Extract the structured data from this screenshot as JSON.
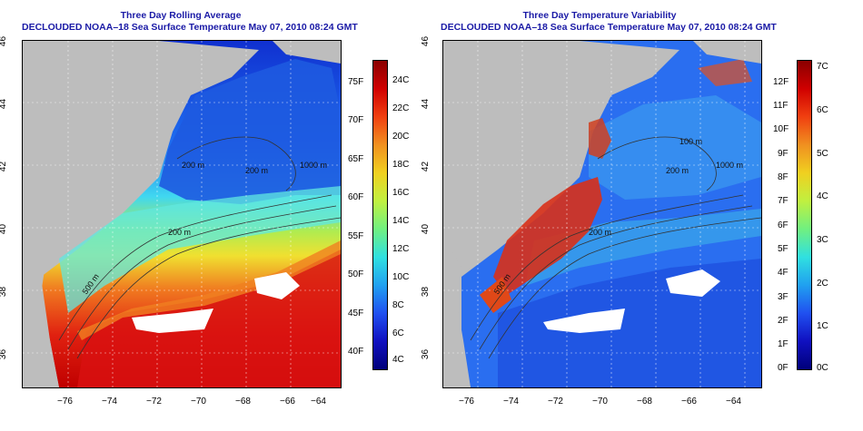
{
  "left_panel": {
    "title_line1": "Three Day Rolling Average",
    "title_line2": "DECLOUDED NOAA–18 Sea Surface Temperature May 07, 2010 08:24 GMT",
    "contour_labels": [
      "200 m",
      "500 m",
      "1000 m",
      "200 m",
      "200 m"
    ],
    "colorbar_f": [
      "75F",
      "70F",
      "65F",
      "60F",
      "55F",
      "50F",
      "45F",
      "40F"
    ],
    "colorbar_c": [
      "24C",
      "22C",
      "20C",
      "18C",
      "16C",
      "14C",
      "12C",
      "10C",
      "8C",
      "6C",
      "4C"
    ]
  },
  "right_panel": {
    "title_line1": "Three Day Temperature Variability",
    "title_line2": "DECLOUDED NOAA–18 Sea Surface Temperature May 07, 2010 08:24 GMT",
    "contour_labels": [
      "100 m",
      "200 m",
      "500 m",
      "200 m",
      "1000 m"
    ],
    "colorbar_f": [
      "12F",
      "11F",
      "10F",
      "9F",
      "8F",
      "7F",
      "6F",
      "5F",
      "4F",
      "3F",
      "2F",
      "1F",
      "0F"
    ],
    "colorbar_c": [
      "7C",
      "6C",
      "5C",
      "4C",
      "3C",
      "2C",
      "1C",
      "0C"
    ]
  },
  "axes": {
    "lat_labels": [
      "46",
      "44",
      "42",
      "40",
      "38",
      "36"
    ],
    "lon_labels": [
      "−76",
      "−74",
      "−72",
      "−70",
      "−68",
      "−66",
      "−64"
    ]
  },
  "colors": {
    "title": "#1a1aa6",
    "land": "#bdbdbd",
    "cloud_mask": "#ffffff"
  }
}
